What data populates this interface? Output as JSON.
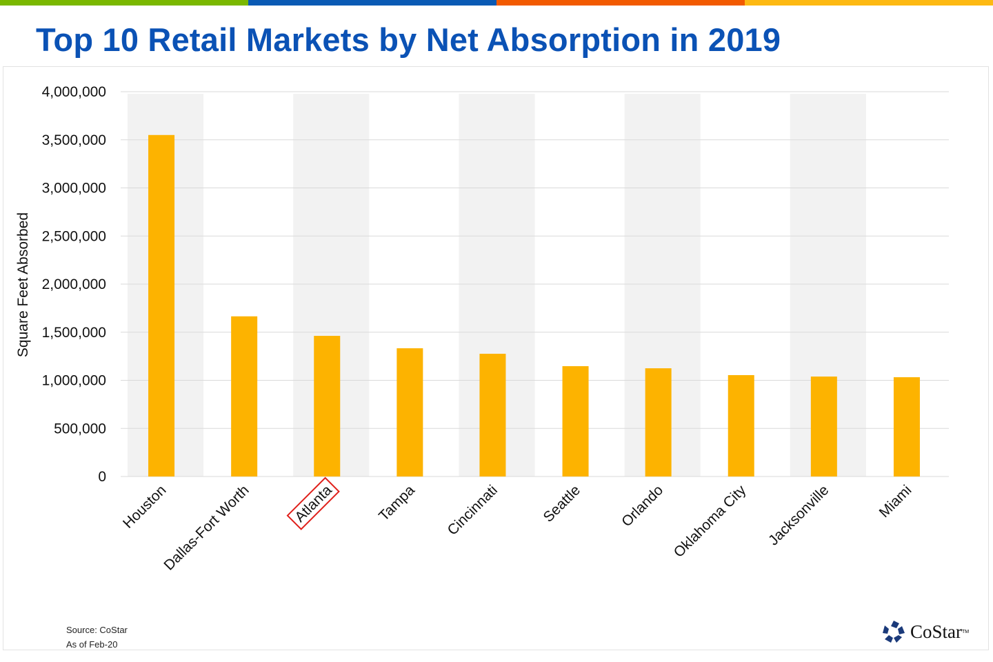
{
  "stripes": [
    "#7ab800",
    "#0a5ab4",
    "#f25a00",
    "#fdb913"
  ],
  "chart_data": {
    "type": "bar",
    "title": "Top 10 Retail Markets by Net Absorption in 2019",
    "ylabel": "Square Feet Absorbed",
    "xlabel": "",
    "ylim": [
      0,
      4000000
    ],
    "yticks": [
      "0",
      "500,000",
      "1,000,000",
      "1,500,000",
      "2,000,000",
      "2,500,000",
      "3,000,000",
      "3,500,000",
      "4,000,000"
    ],
    "categories": [
      "Houston",
      "Dallas-Fort Worth",
      "Atlanta",
      "Tampa",
      "Cincinnati",
      "Seattle",
      "Orlando",
      "Oklahoma City",
      "Jacksonville",
      "Miami"
    ],
    "values": [
      3550000,
      1665000,
      1462000,
      1333000,
      1276000,
      1147000,
      1125000,
      1054000,
      1039000,
      1032000
    ],
    "highlighted_category": "Atlanta",
    "bar_color": "#fdb300",
    "highlight_color": "#e0201b",
    "band_color": "#f2f2f2",
    "grid": true
  },
  "footer": {
    "source": "Source: CoStar",
    "as_of": "As of Feb-20"
  },
  "logo": {
    "text": "CoStar",
    "tm": "TM",
    "color": "#1b3a7a"
  }
}
